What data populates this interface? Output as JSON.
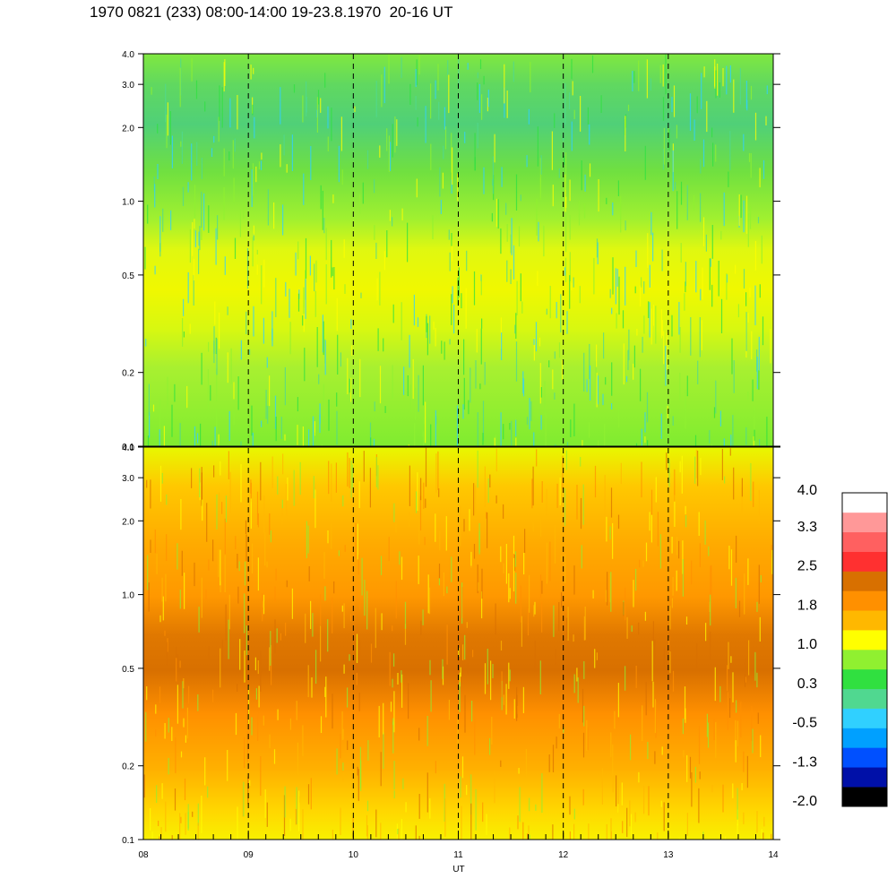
{
  "title": "1970 0821 (233) 08:00-14:00 19-23.8.1970  20-16 UT",
  "chart_data": {
    "type": "heatmap",
    "x_axis": {
      "label": "UT",
      "range": [
        8,
        14
      ],
      "tick_labels": [
        "08",
        "09",
        "10",
        "11",
        "12",
        "13",
        "14"
      ],
      "dashed_gridlines_at": [
        9,
        10,
        11,
        12,
        13
      ]
    },
    "panels": [
      {
        "name": "top",
        "y_axis": {
          "scale": "log",
          "range": [
            0.1,
            4.0
          ],
          "tick_labels": [
            "0.1",
            "0.2",
            "0.5",
            "1.0",
            "2.0",
            "3.0",
            "4.0"
          ],
          "ticks": [
            0.1,
            0.2,
            0.5,
            1.0,
            2.0,
            3.0,
            4.0
          ]
        },
        "dominant_level": "0.3 to 1.0"
      },
      {
        "name": "bottom",
        "y_axis": {
          "scale": "log",
          "range": [
            0.1,
            4.0
          ],
          "tick_labels": [
            "0.1",
            "0.2",
            "0.5",
            "1.0",
            "2.0",
            "3.0",
            "4.0"
          ],
          "ticks": [
            0.1,
            0.2,
            0.5,
            1.0,
            2.0,
            3.0,
            4.0
          ]
        },
        "dominant_level": "1.0 to 2.5"
      }
    ],
    "colorbar": {
      "range": [
        -2.0,
        4.0
      ],
      "tick_labels": [
        "4.0",
        "3.3",
        "2.5",
        "1.8",
        "1.0",
        "0.3",
        "-0.5",
        "-1.3",
        "-2.0"
      ],
      "colors_bottom_to_top": [
        "#000000",
        "#0010a8",
        "#0050ff",
        "#00a0ff",
        "#30d0ff",
        "#50d890",
        "#30e040",
        "#90f030",
        "#ffff00",
        "#ffb800",
        "#ff9000",
        "#d87000",
        "#ff3030",
        "#ff6060",
        "#ff9898",
        "#ffffff"
      ]
    }
  }
}
